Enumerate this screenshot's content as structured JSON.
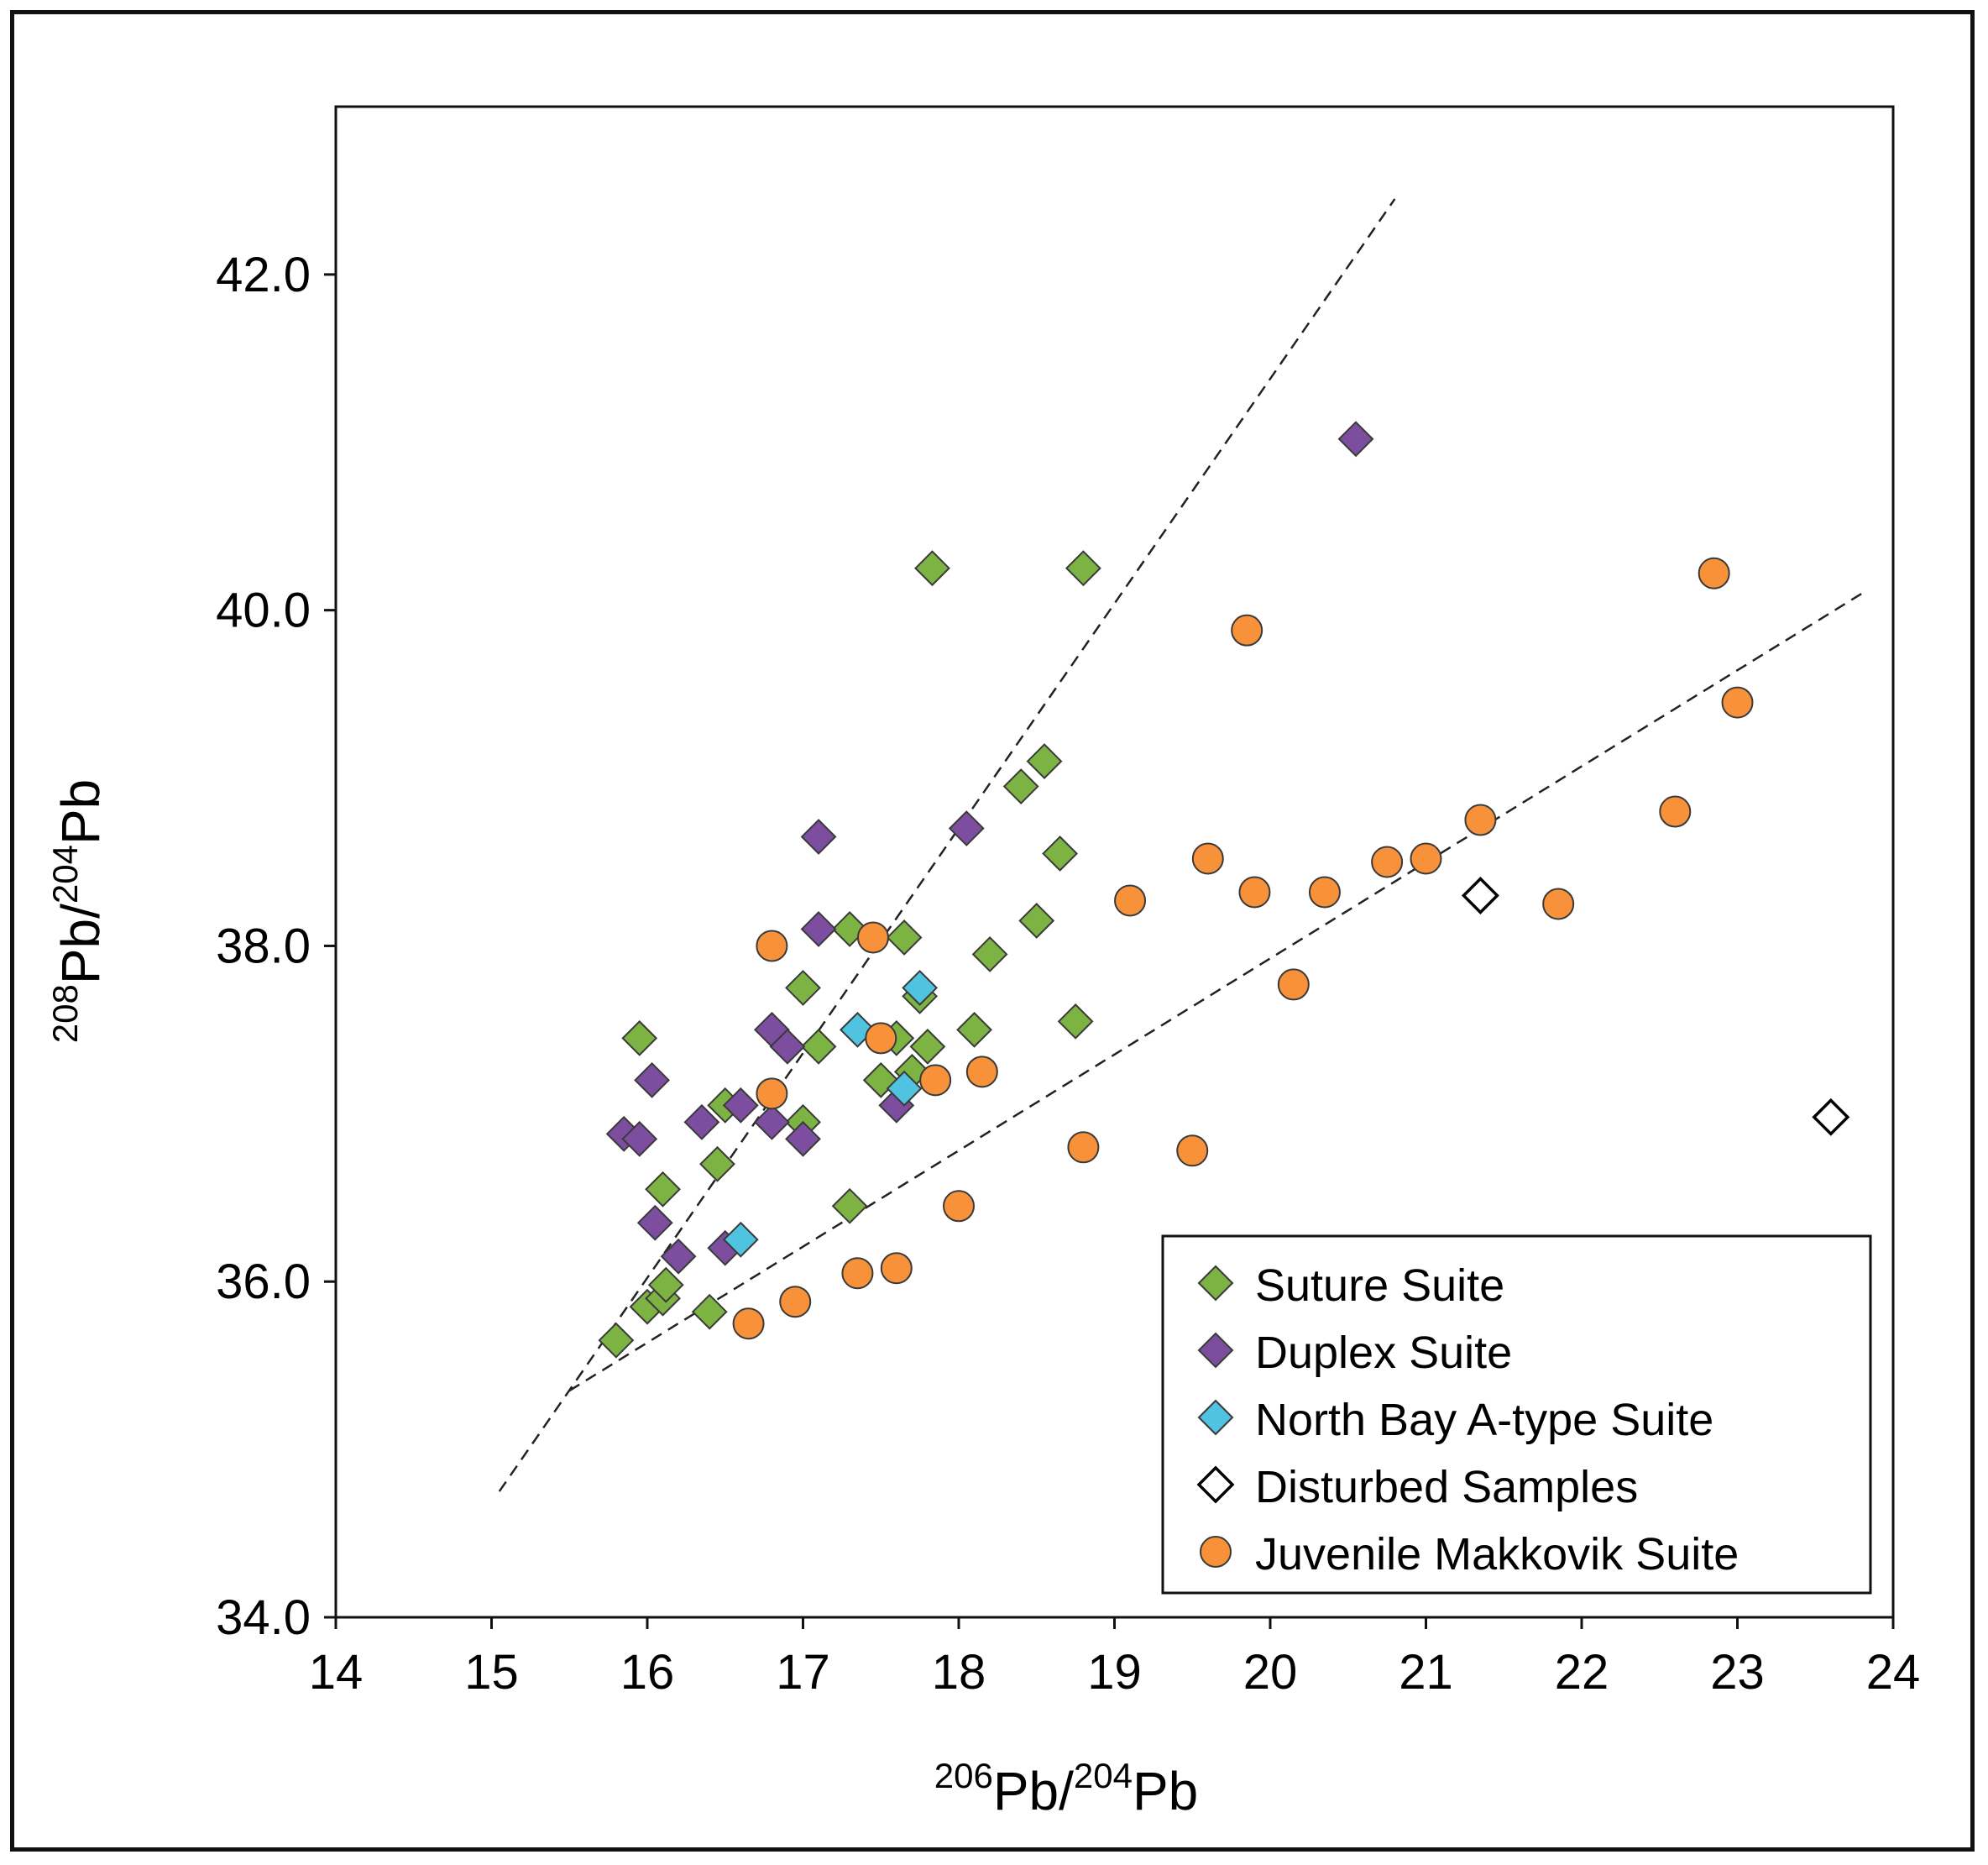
{
  "chart_data": {
    "type": "scatter",
    "title": "",
    "xlabel": {
      "sup1": "206",
      "base1": "Pb/",
      "sup2": "204",
      "base2": "Pb"
    },
    "ylabel": {
      "sup1": "208",
      "base1": "Pb/",
      "sup2": "204",
      "base2": "Pb"
    },
    "xlim": [
      14,
      24
    ],
    "ylim": [
      34,
      43
    ],
    "xticks": [
      "14",
      "15",
      "16",
      "17",
      "18",
      "19",
      "20",
      "21",
      "22",
      "23",
      "24"
    ],
    "yticks": [
      "34.0",
      "36.0",
      "38.0",
      "40.0",
      "42.0"
    ],
    "grid": false,
    "legend_position": "bottom-right",
    "series": [
      {
        "name": "Suture Suite",
        "marker": "diamond",
        "color": "#7cb342",
        "points": [
          [
            15.8,
            35.65
          ],
          [
            16.0,
            35.85
          ],
          [
            16.1,
            35.9
          ],
          [
            16.12,
            35.98
          ],
          [
            16.4,
            35.82
          ],
          [
            16.1,
            36.55
          ],
          [
            16.45,
            36.7
          ],
          [
            15.95,
            37.45
          ],
          [
            16.5,
            37.05
          ],
          [
            17.0,
            37.75
          ],
          [
            17.1,
            37.4
          ],
          [
            17.0,
            36.95
          ],
          [
            17.3,
            38.1
          ],
          [
            17.5,
            37.2
          ],
          [
            17.6,
            37.45
          ],
          [
            17.65,
            38.05
          ],
          [
            17.7,
            37.25
          ],
          [
            17.8,
            37.4
          ],
          [
            17.75,
            37.7
          ],
          [
            18.1,
            37.5
          ],
          [
            18.2,
            37.95
          ],
          [
            18.4,
            38.95
          ],
          [
            18.5,
            38.15
          ],
          [
            18.55,
            39.1
          ],
          [
            18.65,
            38.55
          ],
          [
            18.75,
            37.55
          ],
          [
            17.83,
            40.25
          ],
          [
            18.8,
            40.25
          ],
          [
            17.3,
            36.45
          ]
        ]
      },
      {
        "name": "Duplex Suite",
        "marker": "diamond",
        "color": "#7d4ea0",
        "points": [
          [
            15.85,
            36.88
          ],
          [
            15.95,
            36.85
          ],
          [
            16.03,
            37.2
          ],
          [
            16.05,
            36.35
          ],
          [
            16.2,
            36.15
          ],
          [
            16.35,
            36.95
          ],
          [
            16.5,
            36.2
          ],
          [
            16.6,
            37.05
          ],
          [
            16.8,
            37.5
          ],
          [
            16.8,
            36.95
          ],
          [
            16.9,
            37.4
          ],
          [
            17.0,
            36.85
          ],
          [
            17.1,
            38.65
          ],
          [
            17.1,
            38.1
          ],
          [
            17.6,
            37.05
          ],
          [
            18.05,
            38.7
          ],
          [
            20.55,
            41.02
          ]
        ]
      },
      {
        "name": "North Bay A-type Suite",
        "marker": "diamond",
        "color": "#4fc3e0",
        "points": [
          [
            16.6,
            36.25
          ],
          [
            17.35,
            37.5
          ],
          [
            17.65,
            37.15
          ],
          [
            17.75,
            37.75
          ]
        ]
      },
      {
        "name": "Disturbed Samples",
        "marker": "diamond-open",
        "color": "#ffffff",
        "points": [
          [
            21.35,
            38.3
          ],
          [
            23.6,
            36.98
          ]
        ]
      },
      {
        "name": "Juvenile Makkovik Suite",
        "marker": "circle",
        "color": "#f7923a",
        "points": [
          [
            16.65,
            35.75
          ],
          [
            16.95,
            35.88
          ],
          [
            16.8,
            38.0
          ],
          [
            16.8,
            37.12
          ],
          [
            17.35,
            36.05
          ],
          [
            17.5,
            37.45
          ],
          [
            17.45,
            38.05
          ],
          [
            17.6,
            36.08
          ],
          [
            17.85,
            37.2
          ],
          [
            18.0,
            36.45
          ],
          [
            18.15,
            37.25
          ],
          [
            18.8,
            36.8
          ],
          [
            19.1,
            38.27
          ],
          [
            19.5,
            36.78
          ],
          [
            19.6,
            38.52
          ],
          [
            19.85,
            39.88
          ],
          [
            19.9,
            38.32
          ],
          [
            20.15,
            37.77
          ],
          [
            20.35,
            38.32
          ],
          [
            20.75,
            38.5
          ],
          [
            21.0,
            38.52
          ],
          [
            21.35,
            38.75
          ],
          [
            21.85,
            38.25
          ],
          [
            22.6,
            38.8
          ],
          [
            22.85,
            40.22
          ],
          [
            23.0,
            39.45
          ]
        ]
      }
    ],
    "reference_lines": [
      {
        "from": [
          15.05,
          34.75
        ],
        "to": [
          20.8,
          42.45
        ]
      },
      {
        "from": [
          15.5,
          35.35
        ],
        "to": [
          23.8,
          40.1
        ]
      }
    ]
  }
}
